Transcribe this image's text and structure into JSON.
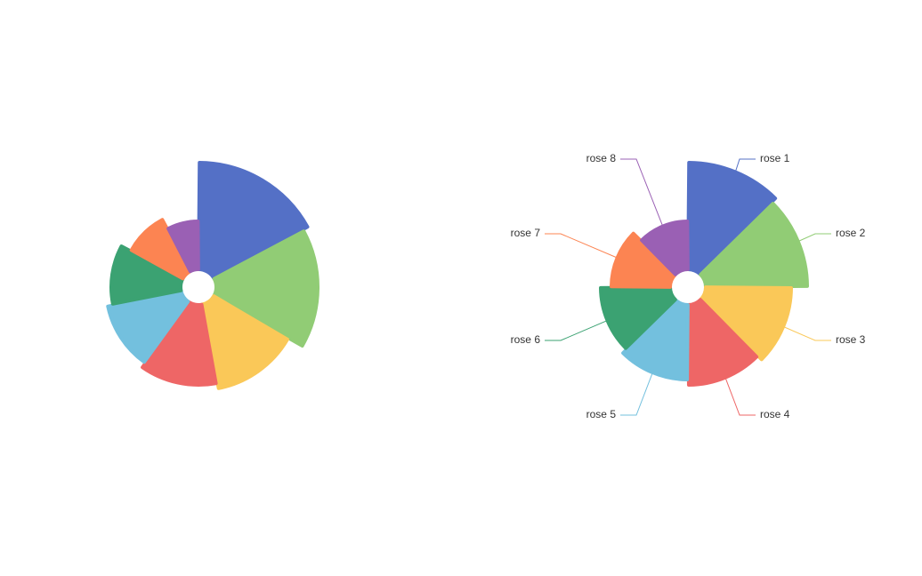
{
  "chart_data": [
    {
      "type": "pie",
      "rose_type": "radius",
      "values": [
        40,
        38,
        32,
        30,
        28,
        26,
        22,
        18
      ],
      "colors": [
        "#5470c6",
        "#91cc75",
        "#fac858",
        "#ee6666",
        "#73c0de",
        "#3ba272",
        "#fc8452",
        "#9a60b4"
      ]
    },
    {
      "type": "pie",
      "rose_type": "area",
      "categories": [
        "rose 1",
        "rose 2",
        "rose 3",
        "rose 4",
        "rose 5",
        "rose 6",
        "rose 7",
        "rose 8"
      ],
      "values": [
        40,
        38,
        32,
        30,
        28,
        26,
        22,
        18
      ],
      "colors": [
        "#5470c6",
        "#91cc75",
        "#fac858",
        "#ee6666",
        "#73c0de",
        "#3ba272",
        "#fc8452",
        "#9a60b4"
      ]
    }
  ]
}
